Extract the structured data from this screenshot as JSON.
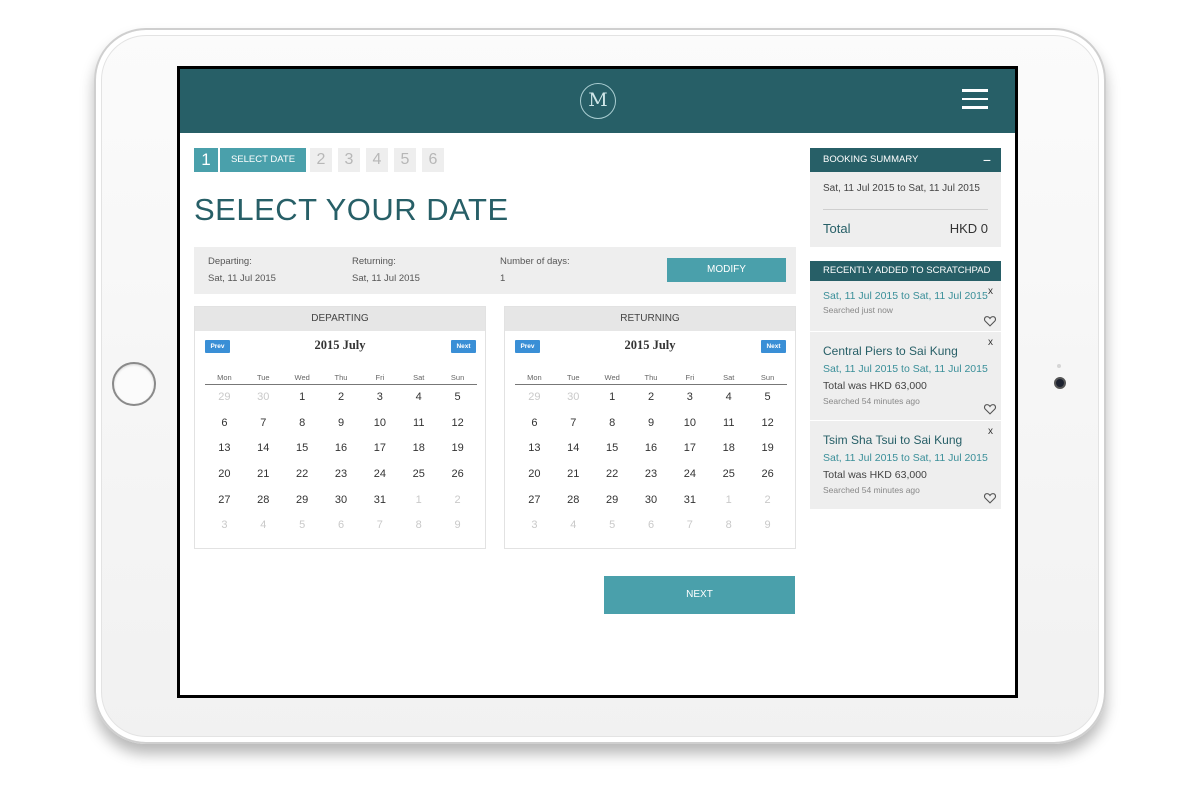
{
  "header": {
    "logo_letter": "M",
    "menu_icon": "hamburger-icon"
  },
  "steps": {
    "current": "1",
    "current_label": "SELECT DATE",
    "others": [
      "2",
      "3",
      "4",
      "5",
      "6"
    ]
  },
  "page_title": "SELECT YOUR DATE",
  "info": {
    "departing_label": "Departing:",
    "departing_value": "Sat, 11 Jul 2015",
    "returning_label": "Returning:",
    "returning_value": "Sat, 11 Jul 2015",
    "days_label": "Number of days:",
    "days_value": "1",
    "modify_label": "MODIFY"
  },
  "calendars": [
    {
      "heading": "DEPARTING",
      "prev_label": "Prev",
      "next_label": "Next",
      "month": "2015 July",
      "weekdays": [
        "Mon",
        "Tue",
        "Wed",
        "Thu",
        "Fri",
        "Sat",
        "Sun"
      ],
      "weeks": [
        [
          {
            "d": "29",
            "m": true
          },
          {
            "d": "30",
            "m": true
          },
          {
            "d": "1"
          },
          {
            "d": "2"
          },
          {
            "d": "3"
          },
          {
            "d": "4"
          },
          {
            "d": "5"
          }
        ],
        [
          {
            "d": "6"
          },
          {
            "d": "7"
          },
          {
            "d": "8"
          },
          {
            "d": "9"
          },
          {
            "d": "10"
          },
          {
            "d": "11"
          },
          {
            "d": "12"
          }
        ],
        [
          {
            "d": "13"
          },
          {
            "d": "14"
          },
          {
            "d": "15"
          },
          {
            "d": "16"
          },
          {
            "d": "17"
          },
          {
            "d": "18"
          },
          {
            "d": "19"
          }
        ],
        [
          {
            "d": "20"
          },
          {
            "d": "21"
          },
          {
            "d": "22"
          },
          {
            "d": "23"
          },
          {
            "d": "24"
          },
          {
            "d": "25"
          },
          {
            "d": "26"
          }
        ],
        [
          {
            "d": "27"
          },
          {
            "d": "28"
          },
          {
            "d": "29"
          },
          {
            "d": "30"
          },
          {
            "d": "31"
          },
          {
            "d": "1",
            "m": true
          },
          {
            "d": "2",
            "m": true
          }
        ],
        [
          {
            "d": "3",
            "m": true
          },
          {
            "d": "4",
            "m": true
          },
          {
            "d": "5",
            "m": true
          },
          {
            "d": "6",
            "m": true
          },
          {
            "d": "7",
            "m": true
          },
          {
            "d": "8",
            "m": true
          },
          {
            "d": "9",
            "m": true
          }
        ]
      ]
    },
    {
      "heading": "RETURNING",
      "prev_label": "Prev",
      "next_label": "Next",
      "month": "2015 July",
      "weekdays": [
        "Mon",
        "Tue",
        "Wed",
        "Thu",
        "Fri",
        "Sat",
        "Sun"
      ],
      "weeks": [
        [
          {
            "d": "29",
            "m": true
          },
          {
            "d": "30",
            "m": true
          },
          {
            "d": "1"
          },
          {
            "d": "2"
          },
          {
            "d": "3"
          },
          {
            "d": "4"
          },
          {
            "d": "5"
          }
        ],
        [
          {
            "d": "6"
          },
          {
            "d": "7"
          },
          {
            "d": "8"
          },
          {
            "d": "9"
          },
          {
            "d": "10"
          },
          {
            "d": "11"
          },
          {
            "d": "12"
          }
        ],
        [
          {
            "d": "13"
          },
          {
            "d": "14"
          },
          {
            "d": "15"
          },
          {
            "d": "16"
          },
          {
            "d": "17"
          },
          {
            "d": "18"
          },
          {
            "d": "19"
          }
        ],
        [
          {
            "d": "20"
          },
          {
            "d": "21"
          },
          {
            "d": "22"
          },
          {
            "d": "23"
          },
          {
            "d": "24"
          },
          {
            "d": "25"
          },
          {
            "d": "26"
          }
        ],
        [
          {
            "d": "27"
          },
          {
            "d": "28"
          },
          {
            "d": "29"
          },
          {
            "d": "30"
          },
          {
            "d": "31"
          },
          {
            "d": "1",
            "m": true
          },
          {
            "d": "2",
            "m": true
          }
        ],
        [
          {
            "d": "3",
            "m": true
          },
          {
            "d": "4",
            "m": true
          },
          {
            "d": "5",
            "m": true
          },
          {
            "d": "6",
            "m": true
          },
          {
            "d": "7",
            "m": true
          },
          {
            "d": "8",
            "m": true
          },
          {
            "d": "9",
            "m": true
          }
        ]
      ]
    }
  ],
  "next_label": "NEXT",
  "summary": {
    "heading": "BOOKING SUMMARY",
    "toggle": "−",
    "dates": "Sat, 11 Jul 2015 to Sat, 11 Jul 2015",
    "total_label": "Total",
    "total_value": "HKD 0"
  },
  "scratchpad": {
    "heading": "RECENTLY ADDED TO SCRATCHPAD",
    "remove_label": "x",
    "items": [
      {
        "title": "",
        "dates": "Sat, 11 Jul 2015 to Sat, 11 Jul 2015",
        "total": "",
        "when": "Searched just now"
      },
      {
        "title": "Central Piers to Sai Kung",
        "dates": "Sat, 11 Jul 2015 to Sat, 11 Jul 2015",
        "total": "Total was HKD 63,000",
        "when": "Searched 54 minutes ago"
      },
      {
        "title": "Tsim Sha Tsui to Sai Kung",
        "dates": "Sat, 11 Jul 2015 to Sat, 11 Jul 2015",
        "total": "Total was HKD 63,000",
        "when": "Searched 54 minutes ago"
      }
    ]
  },
  "colors": {
    "brand_dark": "#275f67",
    "accent": "#4aa0ab",
    "nav_button": "#3a8fd6",
    "panel_bg": "#eeeeee"
  }
}
